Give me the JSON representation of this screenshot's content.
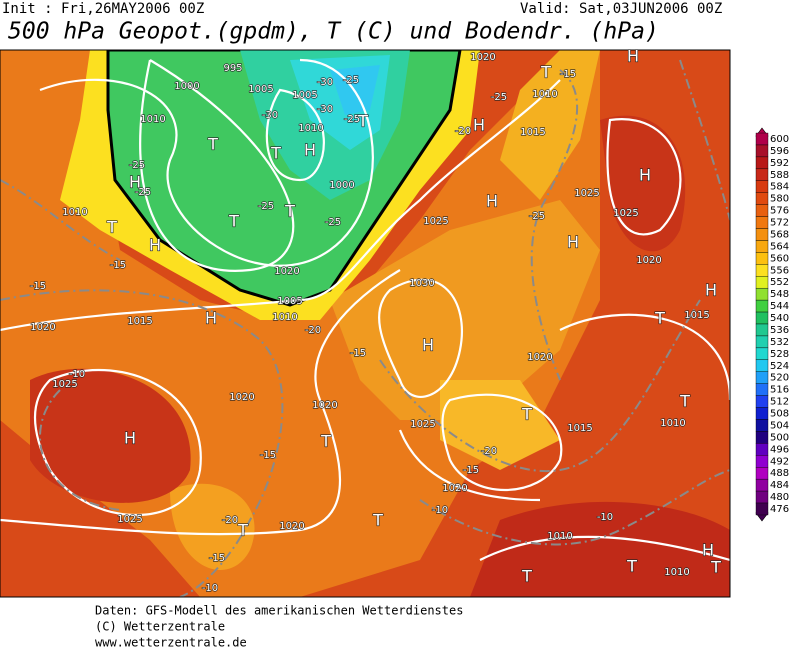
{
  "header": {
    "init": "Init : Fri,26MAY2006 00Z",
    "valid": "Valid: Sat,03JUN2006 00Z",
    "title": "500 hPa Geopot.(gpdm), T (C) und Bodendr. (hPa)"
  },
  "map_labels": [
    "H",
    "T",
    "-15",
    "1010",
    "-25",
    "1020",
    "-20",
    "H",
    "1015",
    "995",
    "1000",
    "1005",
    "-30",
    "-25",
    "1005",
    "-30",
    "-30",
    "-25",
    "T",
    "1010",
    "1010",
    "T",
    "T",
    "H",
    "-25",
    "H",
    "-25",
    "1000",
    "T",
    "-25",
    "T",
    "-25",
    "1010",
    "T",
    "H",
    "-15",
    "-15",
    "1020",
    "1005",
    "1010",
    "H",
    "1015",
    "-20",
    "1020",
    "1025",
    "H",
    "-25",
    "1025",
    "H",
    "1025",
    "H",
    "1020",
    "1030",
    "H",
    "-15",
    "H",
    "T",
    "1015",
    "1020",
    "-10",
    "1025",
    "H",
    "1020",
    "1020",
    "T",
    "T",
    "-15",
    "1025",
    "1015",
    "T",
    "1010",
    "-20",
    "-15",
    "1020",
    "-20",
    "T",
    "1020",
    "T",
    "1025",
    "-10",
    "-15",
    "-10",
    "1010",
    "-10",
    "T",
    "T",
    "1010",
    "H",
    "T"
  ],
  "colorbar": {
    "labels": [
      600,
      596,
      592,
      588,
      584,
      580,
      576,
      572,
      568,
      564,
      560,
      556,
      552,
      548,
      544,
      540,
      536,
      532,
      528,
      524,
      520,
      516,
      512,
      508,
      504,
      500,
      496,
      492,
      488,
      484,
      480,
      476
    ],
    "colors": [
      "#b0004a",
      "#a8102a",
      "#b81818",
      "#c82818",
      "#d83a10",
      "#e04a10",
      "#e86010",
      "#f07810",
      "#f49010",
      "#f8a810",
      "#fcc010",
      "#fce020",
      "#e0f020",
      "#90e030",
      "#40d040",
      "#20c060",
      "#20c890",
      "#20d0b0",
      "#20d8d0",
      "#20c8f0",
      "#20a0f8",
      "#2070f8",
      "#2040f0",
      "#1020d0",
      "#1010a0",
      "#200080",
      "#6000c0",
      "#9000d0",
      "#b000c0",
      "#9000a0",
      "#700080",
      "#400050"
    ]
  },
  "footer": [
    "Daten: GFS-Modell des amerikanischen Wetterdienstes",
    "(C) Wetterzentrale",
    "www.wetterzentrale.de"
  ]
}
